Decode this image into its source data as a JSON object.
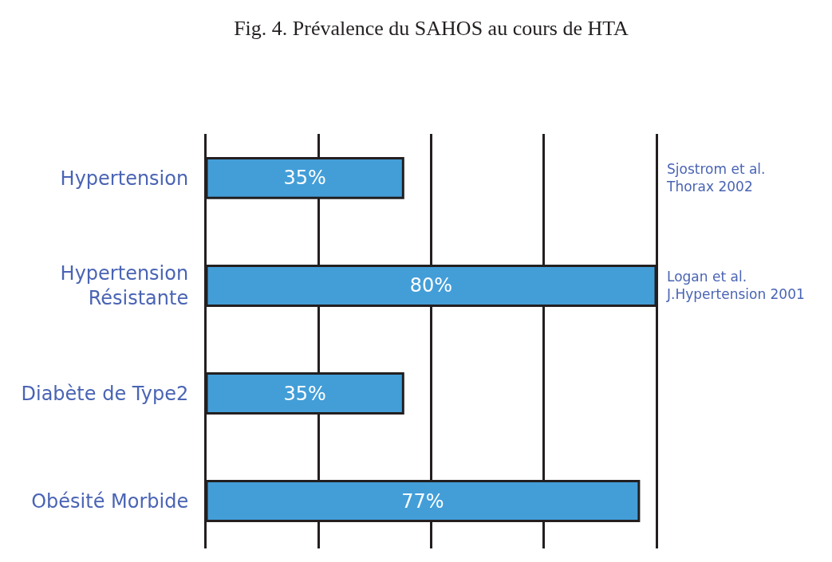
{
  "chart_data": {
    "type": "bar",
    "orientation": "horizontal",
    "title": "Fig. 4. Prévalence du SAHOS au cours de HTA",
    "categories": [
      "Hypertension",
      "Hypertension\nRésistante",
      "Diabète de Type2",
      "Obésité Morbide"
    ],
    "values": [
      35,
      80,
      35,
      77
    ],
    "color": "#439ed8",
    "value_labels": [
      "35%",
      "80%",
      "35%",
      "77%"
    ],
    "grid": "x",
    "tick_labels": "y",
    "annotations": [
      "Sjostrom et al.\nThorax 2002",
      "Logan et al.\nJ.Hypertension 2001"
    ]
  }
}
